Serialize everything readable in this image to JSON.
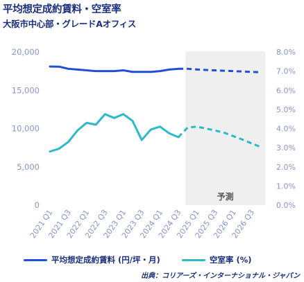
{
  "header": {
    "title": "平均想定成約賃料・空室率",
    "subtitle": "大阪市中心部・グレードAオフィス"
  },
  "legend": {
    "rent_label": "平均想定成約賃料 (円/坪・月)",
    "vacancy_label": "空室率 (%)"
  },
  "source": "出典：コリアーズ・インターナショナル・ジャパン",
  "forecast_label": "予測",
  "colors": {
    "rent": "#1f4fd6",
    "vacancy": "#2fb8c9",
    "axis_text": "#8796c8",
    "forecast_bg": "#efefef"
  },
  "chart_data": {
    "type": "line",
    "title": "平均想定成約賃料・空室率",
    "subtitle": "大阪市中心部・グレードAオフィス",
    "x": [
      "2021 Q1",
      "2021 Q2",
      "2021 Q3",
      "2021 Q4",
      "2022 Q1",
      "2022 Q2",
      "2022 Q3",
      "2022 Q4",
      "2023 Q1",
      "2023 Q2",
      "2023 Q3",
      "2023 Q4",
      "2024 Q1",
      "2024 Q2",
      "2024 Q3",
      "2024 Q4",
      "2025 Q1",
      "2025 Q2",
      "2025 Q3",
      "2025 Q4",
      "2026 Q1",
      "2026 Q2",
      "2026 Q3",
      "2026 Q4"
    ],
    "x_tick_labels": [
      "2021 Q1",
      "2021 Q3",
      "2022 Q1",
      "2022 Q3",
      "2023 Q1",
      "2023 Q3",
      "2024 Q1",
      "2024 Q3",
      "2025 Q1",
      "2025 Q3",
      "2026 Q1",
      "2026 Q3"
    ],
    "forecast_start": "2024 Q4",
    "y_left": {
      "ylim": [
        0,
        20000
      ],
      "ticks": [
        "0",
        "5,000",
        "10,000",
        "15,000",
        "20,000"
      ]
    },
    "y_right": {
      "ylim": [
        0,
        8
      ],
      "ticks": [
        "0.0%",
        "1.0%",
        "2.0%",
        "3.0%",
        "4.0%",
        "5.0%",
        "6.0%",
        "7.0%",
        "8.0%"
      ]
    },
    "series": [
      {
        "name": "平均想定成約賃料 (円/坪・月)",
        "axis": "left",
        "values": [
          18100,
          18080,
          17800,
          17700,
          17600,
          17500,
          17500,
          17500,
          17600,
          17400,
          17400,
          17400,
          17500,
          17700,
          17800,
          17800,
          17720,
          17650,
          17600,
          17550,
          17500,
          17450,
          17400,
          17350
        ]
      },
      {
        "name": "空室率 (%)",
        "axis": "right",
        "values": [
          2.8,
          2.95,
          3.3,
          3.9,
          4.3,
          4.2,
          4.75,
          4.55,
          4.75,
          4.4,
          3.4,
          3.95,
          4.1,
          3.75,
          3.55,
          4.05,
          4.1,
          4.0,
          3.9,
          3.78,
          3.6,
          3.42,
          3.22,
          3.03
        ]
      }
    ],
    "grid": false
  }
}
